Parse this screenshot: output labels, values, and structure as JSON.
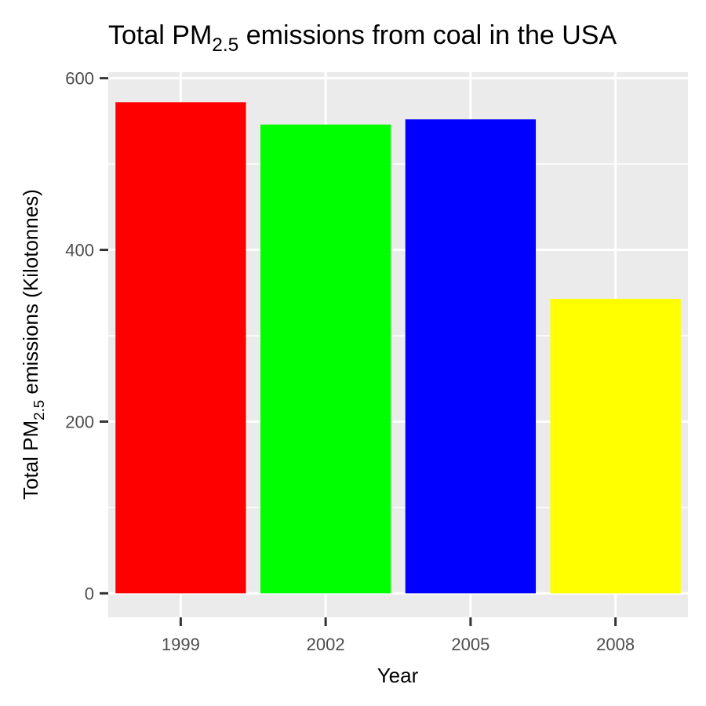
{
  "chart_data": {
    "type": "bar",
    "title": {
      "main": "Total PM",
      "sub": "2.5",
      "rest": " emissions from coal in the USA"
    },
    "xlabel": "Year",
    "ylabel": {
      "main": "Total PM",
      "sub": "2.5",
      "rest": " emissions (Kilotonnes)"
    },
    "categories": [
      "1999",
      "2002",
      "2005",
      "2008"
    ],
    "values": [
      572,
      546,
      552,
      343
    ],
    "colors": [
      "#FF0000",
      "#00FF00",
      "#0000FF",
      "#FFFF00"
    ],
    "ylim": [
      -28,
      607
    ],
    "yticks": [
      0,
      200,
      400,
      600
    ],
    "y_minor_ticks": [
      100,
      300,
      500
    ],
    "grid": true,
    "legend": "none",
    "panel_background": "#EBEBEB",
    "grid_color": "#FFFFFF"
  }
}
